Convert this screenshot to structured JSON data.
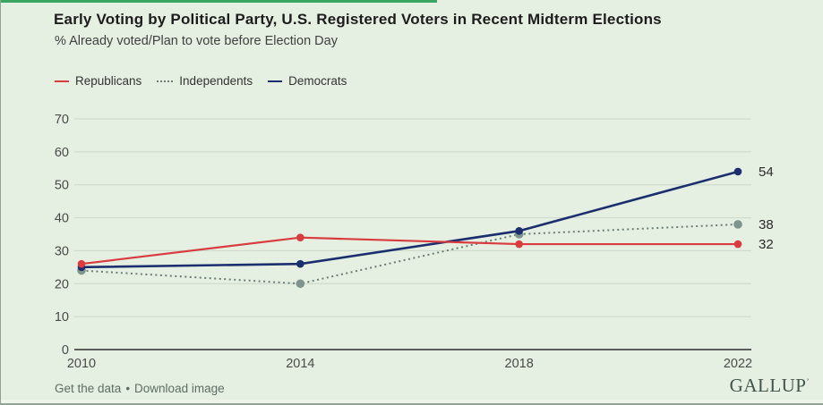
{
  "colors": {
    "bg": "#e5efe2",
    "accent": "#3ba563",
    "title": "#1d1d1d",
    "muted": "#5d6e64",
    "logo": "#41534a",
    "grid": "#cbd7ca",
    "axis": "#2e2e2e",
    "tick_text": "#4a4a4a",
    "end_label_text": "#2a2a2a"
  },
  "chart_data": {
    "type": "line",
    "title": "Early Voting by Political Party, U.S. Registered Voters in Recent Midterm Elections",
    "subtitle": "% Already voted/Plan to vote before Election Day",
    "x": [
      "2010",
      "2014",
      "2018",
      "2022"
    ],
    "series": [
      {
        "name": "Republicans",
        "values": [
          26,
          34,
          32,
          32
        ],
        "color": "#d93b3e",
        "dash": "solid",
        "end_label": "32"
      },
      {
        "name": "Independents",
        "values": [
          24,
          20,
          35,
          38
        ],
        "color": "#6c7d76",
        "marker_color": "#7f948c",
        "dash": "dotted",
        "end_label": "38"
      },
      {
        "name": "Democrats",
        "values": [
          25,
          26,
          36,
          54
        ],
        "color": "#1b2f6e",
        "dash": "solid",
        "end_label": "54"
      }
    ],
    "ylim": [
      0,
      70
    ],
    "yticks": [
      0,
      10,
      20,
      30,
      40,
      50,
      60,
      70
    ],
    "grid": true,
    "legend_position": "top-left"
  },
  "footer": {
    "link_get_data": "Get the data",
    "link_download": "Download image",
    "separator": "•",
    "logo": "GALLUP",
    "logo_mark": "’"
  }
}
